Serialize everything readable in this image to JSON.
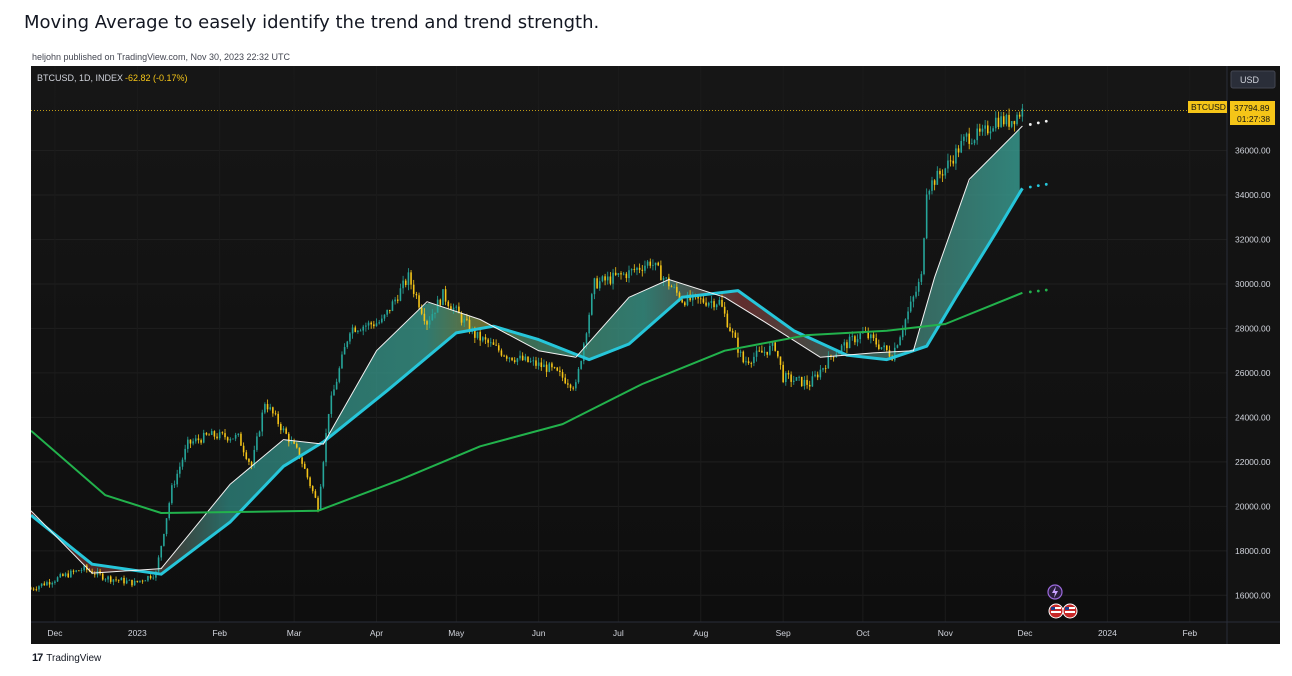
{
  "page": {
    "title": "Moving Average to easely identify the trend and trend strength.",
    "byline": "heljohn published on TradingView.com, Nov 30, 2023 22:32 UTC",
    "footer_brand": "TradingView",
    "footer_logo": "17"
  },
  "chart_data": {
    "type": "candlestick",
    "symbol_info": "BTCUSD, 1D, INDEX",
    "change": "-62.82 (-0.17%)",
    "currency": "USD",
    "last_price_tag": "BTCUSD",
    "last_price": "37794.89",
    "countdown": "01:27:38",
    "ylim": [
      14800,
      39800
    ],
    "yticks": [
      16000,
      18000,
      20000,
      22000,
      24000,
      26000,
      28000,
      30000,
      32000,
      34000,
      36000
    ],
    "ytick_labels": [
      "16000.00",
      "18000.00",
      "20000.00",
      "22000.00",
      "24000.00",
      "26000.00",
      "28000.00",
      "30000.00",
      "32000.00",
      "34000.00",
      "36000.00"
    ],
    "xlim": [
      "2022-11-22",
      "2024-02-15"
    ],
    "xticks": [
      {
        "date": "2022-12-01",
        "label": "Dec"
      },
      {
        "date": "2023-01-01",
        "label": "2023"
      },
      {
        "date": "2023-02-01",
        "label": "Feb"
      },
      {
        "date": "2023-03-01",
        "label": "Mar"
      },
      {
        "date": "2023-04-01",
        "label": "Apr"
      },
      {
        "date": "2023-05-01",
        "label": "May"
      },
      {
        "date": "2023-06-01",
        "label": "Jun"
      },
      {
        "date": "2023-07-01",
        "label": "Jul"
      },
      {
        "date": "2023-08-01",
        "label": "Aug"
      },
      {
        "date": "2023-09-01",
        "label": "Sep"
      },
      {
        "date": "2023-10-01",
        "label": "Oct"
      },
      {
        "date": "2023-11-01",
        "label": "Nov"
      },
      {
        "date": "2023-12-01",
        "label": "Dec"
      },
      {
        "date": "2024-01-01",
        "label": "2024"
      },
      {
        "date": "2024-02-01",
        "label": "Feb"
      }
    ],
    "price_path": [
      [
        "2022-11-22",
        16300
      ],
      [
        "2022-12-05",
        16900
      ],
      [
        "2022-12-12",
        17200
      ],
      [
        "2022-12-20",
        16800
      ],
      [
        "2022-12-31",
        16550
      ],
      [
        "2023-01-08",
        17000
      ],
      [
        "2023-01-14",
        20800
      ],
      [
        "2023-01-20",
        22800
      ],
      [
        "2023-01-28",
        23200
      ],
      [
        "2023-02-08",
        23100
      ],
      [
        "2023-02-13",
        21800
      ],
      [
        "2023-02-18",
        24700
      ],
      [
        "2023-02-25",
        23400
      ],
      [
        "2023-03-03",
        22300
      ],
      [
        "2023-03-10",
        20000
      ],
      [
        "2023-03-14",
        24300
      ],
      [
        "2023-03-22",
        28000
      ],
      [
        "2023-04-03",
        28300
      ],
      [
        "2023-04-13",
        30300
      ],
      [
        "2023-04-20",
        28300
      ],
      [
        "2023-04-26",
        29500
      ],
      [
        "2023-05-08",
        27700
      ],
      [
        "2023-05-20",
        26800
      ],
      [
        "2023-06-05",
        26200
      ],
      [
        "2023-06-15",
        25400
      ],
      [
        "2023-06-22",
        30000
      ],
      [
        "2023-07-05",
        30500
      ],
      [
        "2023-07-13",
        31000
      ],
      [
        "2023-07-25",
        29300
      ],
      [
        "2023-08-08",
        29200
      ],
      [
        "2023-08-17",
        26500
      ],
      [
        "2023-08-29",
        27200
      ],
      [
        "2023-09-01",
        25800
      ],
      [
        "2023-09-11",
        25500
      ],
      [
        "2023-09-20",
        26900
      ],
      [
        "2023-10-01",
        27800
      ],
      [
        "2023-10-12",
        26800
      ],
      [
        "2023-10-17",
        28400
      ],
      [
        "2023-10-23",
        30300
      ],
      [
        "2023-10-25",
        34300
      ],
      [
        "2023-11-01",
        35200
      ],
      [
        "2023-11-09",
        36600
      ],
      [
        "2023-11-15",
        36700
      ],
      [
        "2023-11-20",
        37400
      ],
      [
        "2023-11-25",
        37300
      ],
      [
        "2023-11-30",
        37795
      ]
    ],
    "series": [
      {
        "name": "",
        "color": "#26c6da",
        "points": [
          [
            "2022-11-22",
            19600
          ],
          [
            "2022-12-15",
            17400
          ],
          [
            "2023-01-10",
            16950
          ],
          [
            "2023-02-05",
            19300
          ],
          [
            "2023-02-25",
            21800
          ],
          [
            "2023-03-12",
            22900
          ],
          [
            "2023-04-05",
            25200
          ],
          [
            "2023-05-01",
            27800
          ],
          [
            "2023-05-15",
            28100
          ],
          [
            "2023-06-01",
            27500
          ],
          [
            "2023-06-20",
            26600
          ],
          [
            "2023-07-05",
            27300
          ],
          [
            "2023-07-25",
            29400
          ],
          [
            "2023-08-15",
            29700
          ],
          [
            "2023-09-05",
            27900
          ],
          [
            "2023-09-25",
            26800
          ],
          [
            "2023-10-10",
            26600
          ],
          [
            "2023-10-25",
            27200
          ],
          [
            "2023-11-05",
            29400
          ],
          [
            "2023-11-20",
            32300
          ],
          [
            "2023-11-30",
            34300
          ]
        ]
      },
      {
        "name": "",
        "color": "#f2f2f2",
        "points": [
          [
            "2022-11-22",
            19800
          ],
          [
            "2022-12-15",
            17000
          ],
          [
            "2023-01-10",
            17200
          ],
          [
            "2023-02-05",
            21000
          ],
          [
            "2023-02-25",
            23000
          ],
          [
            "2023-03-12",
            22800
          ],
          [
            "2023-04-01",
            27000
          ],
          [
            "2023-04-20",
            29200
          ],
          [
            "2023-05-10",
            28400
          ],
          [
            "2023-06-01",
            27000
          ],
          [
            "2023-06-15",
            26700
          ],
          [
            "2023-07-05",
            29400
          ],
          [
            "2023-07-20",
            30200
          ],
          [
            "2023-08-10",
            29400
          ],
          [
            "2023-08-25",
            28300
          ],
          [
            "2023-09-15",
            26700
          ],
          [
            "2023-10-05",
            26900
          ],
          [
            "2023-10-20",
            27000
          ],
          [
            "2023-10-28",
            30300
          ],
          [
            "2023-11-10",
            34700
          ],
          [
            "2023-11-30",
            37100
          ]
        ]
      },
      {
        "name": "",
        "color": "#22b24c",
        "points": [
          [
            "2022-11-22",
            23400
          ],
          [
            "2022-12-20",
            20500
          ],
          [
            "2023-01-10",
            19700
          ],
          [
            "2023-02-10",
            19750
          ],
          [
            "2023-03-10",
            19800
          ],
          [
            "2023-04-10",
            21200
          ],
          [
            "2023-05-10",
            22700
          ],
          [
            "2023-06-10",
            23700
          ],
          [
            "2023-07-10",
            25500
          ],
          [
            "2023-08-10",
            27000
          ],
          [
            "2023-09-10",
            27700
          ],
          [
            "2023-10-10",
            27900
          ],
          [
            "2023-11-01",
            28200
          ],
          [
            "2023-11-30",
            29600
          ]
        ]
      }
    ]
  },
  "icons": {
    "alert": "lightning-icon",
    "events": "us-flag-icon"
  }
}
